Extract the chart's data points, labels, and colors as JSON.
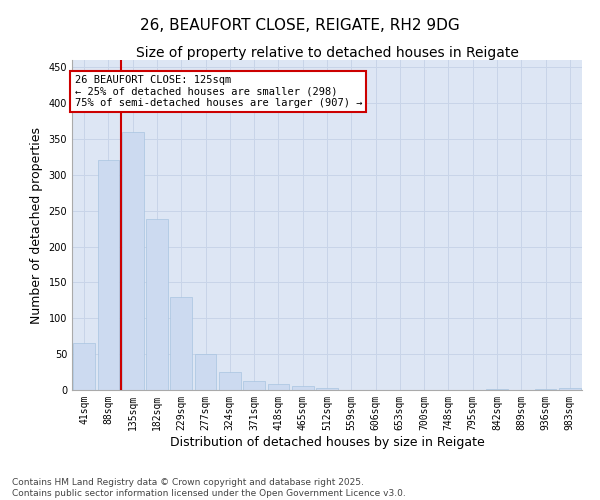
{
  "title_line1": "26, BEAUFORT CLOSE, REIGATE, RH2 9DG",
  "title_line2": "Size of property relative to detached houses in Reigate",
  "xlabel": "Distribution of detached houses by size in Reigate",
  "ylabel": "Number of detached properties",
  "categories": [
    "41sqm",
    "88sqm",
    "135sqm",
    "182sqm",
    "229sqm",
    "277sqm",
    "324sqm",
    "371sqm",
    "418sqm",
    "465sqm",
    "512sqm",
    "559sqm",
    "606sqm",
    "653sqm",
    "700sqm",
    "748sqm",
    "795sqm",
    "842sqm",
    "889sqm",
    "936sqm",
    "983sqm"
  ],
  "values": [
    65,
    320,
    360,
    238,
    130,
    50,
    25,
    13,
    9,
    5,
    3,
    0,
    0,
    0,
    0,
    0,
    0,
    2,
    0,
    1,
    3
  ],
  "bar_color": "#ccdaf0",
  "bar_edge_color": "#a8c4e0",
  "vline_color": "#cc0000",
  "vline_index": 1.5,
  "annotation_text": "26 BEAUFORT CLOSE: 125sqm\n← 25% of detached houses are smaller (298)\n75% of semi-detached houses are larger (907) →",
  "annotation_box_color": "#ffffff",
  "annotation_box_edge": "#cc0000",
  "ylim": [
    0,
    460
  ],
  "yticks": [
    0,
    50,
    100,
    150,
    200,
    250,
    300,
    350,
    400,
    450
  ],
  "grid_color": "#c8d4e8",
  "background_color": "#dde6f4",
  "footer_line1": "Contains HM Land Registry data © Crown copyright and database right 2025.",
  "footer_line2": "Contains public sector information licensed under the Open Government Licence v3.0.",
  "title_fontsize": 11,
  "subtitle_fontsize": 10,
  "tick_fontsize": 7,
  "label_fontsize": 9,
  "annot_fontsize": 7.5,
  "footer_fontsize": 6.5
}
